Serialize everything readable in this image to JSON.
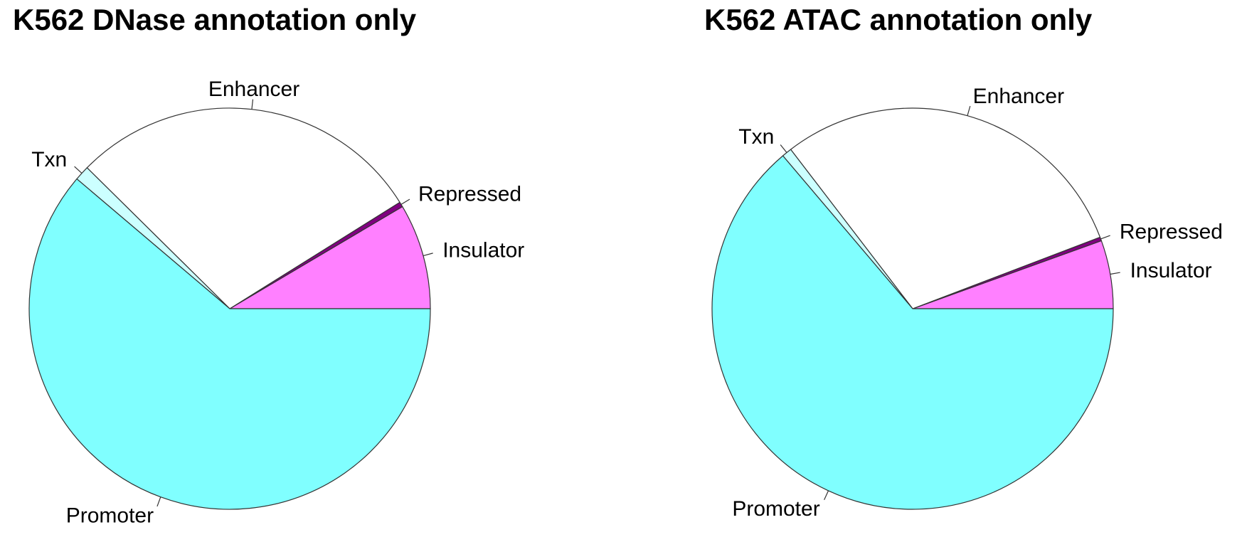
{
  "chart_data": [
    {
      "type": "pie",
      "title": "K562 DNase annotation only",
      "direction": "counter-clockwise",
      "start_angle_deg": 0,
      "slices": [
        {
          "label": "Insulator",
          "value": 8.5,
          "color": "#ff80ff"
        },
        {
          "label": "Repressed",
          "value": 0.4,
          "color": "#800080"
        },
        {
          "label": "Enhancer",
          "value": 28.7,
          "color": "#ffffff"
        },
        {
          "label": "Txn",
          "value": 1.2,
          "color": "#ccffff"
        },
        {
          "label": "Promoter",
          "value": 61.2,
          "color": "#80ffff"
        }
      ]
    },
    {
      "type": "pie",
      "title": "K562 ATAC annotation only",
      "direction": "counter-clockwise",
      "start_angle_deg": 0,
      "slices": [
        {
          "label": "Insulator",
          "value": 5.5,
          "color": "#ff80ff"
        },
        {
          "label": "Repressed",
          "value": 0.3,
          "color": "#800080"
        },
        {
          "label": "Enhancer",
          "value": 29.6,
          "color": "#ffffff"
        },
        {
          "label": "Txn",
          "value": 0.8,
          "color": "#ccffff"
        },
        {
          "label": "Promoter",
          "value": 63.8,
          "color": "#80ffff"
        }
      ]
    }
  ]
}
